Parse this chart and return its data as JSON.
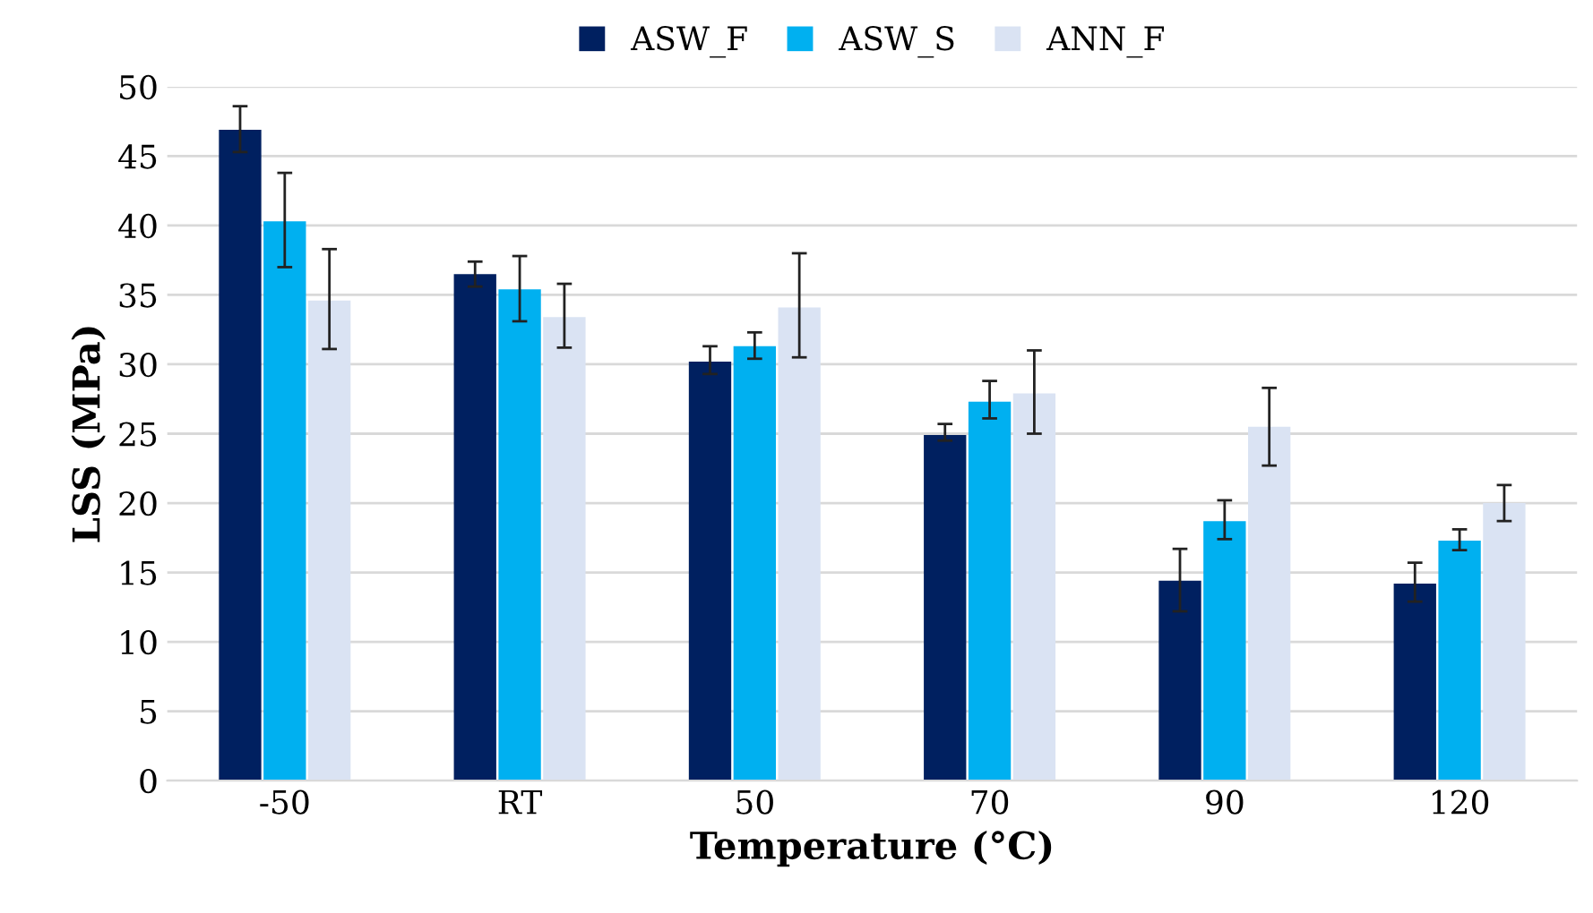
{
  "chart_data": {
    "type": "bar",
    "xlabel": "Temperature (°C)",
    "ylabel": "LSS (MPa)",
    "categories": [
      "-50",
      "RT",
      "50",
      "70",
      "90",
      "120"
    ],
    "series": [
      {
        "name": "ASW_F",
        "color": "#002060",
        "values": [
          46.9,
          36.5,
          30.2,
          24.9,
          14.4,
          14.2
        ],
        "errors": [
          [
            45.3,
            48.6
          ],
          [
            35.6,
            37.4
          ],
          [
            29.3,
            31.3
          ],
          [
            24.5,
            25.7
          ],
          [
            12.2,
            16.7
          ],
          [
            12.9,
            15.7
          ]
        ]
      },
      {
        "name": "ASW_S",
        "color": "#00b0f0",
        "values": [
          40.3,
          35.4,
          31.3,
          27.3,
          18.7,
          17.3
        ],
        "errors": [
          [
            37.0,
            43.8
          ],
          [
            33.1,
            37.8
          ],
          [
            30.4,
            32.3
          ],
          [
            26.1,
            28.8
          ],
          [
            17.4,
            20.2
          ],
          [
            16.6,
            18.1
          ]
        ]
      },
      {
        "name": "ANN_F",
        "color": "#dae3f3",
        "values": [
          34.6,
          33.4,
          34.1,
          27.9,
          25.5,
          20.0
        ],
        "errors": [
          [
            31.1,
            38.3
          ],
          [
            31.2,
            35.8
          ],
          [
            30.5,
            38.0
          ],
          [
            25.0,
            31.0
          ],
          [
            22.7,
            28.3
          ],
          [
            18.7,
            21.3
          ]
        ]
      }
    ],
    "ylim": [
      0,
      50
    ],
    "yticks": [
      0,
      5,
      10,
      15,
      20,
      25,
      30,
      35,
      40,
      45,
      50
    ],
    "grid": "y",
    "legend": "top"
  }
}
